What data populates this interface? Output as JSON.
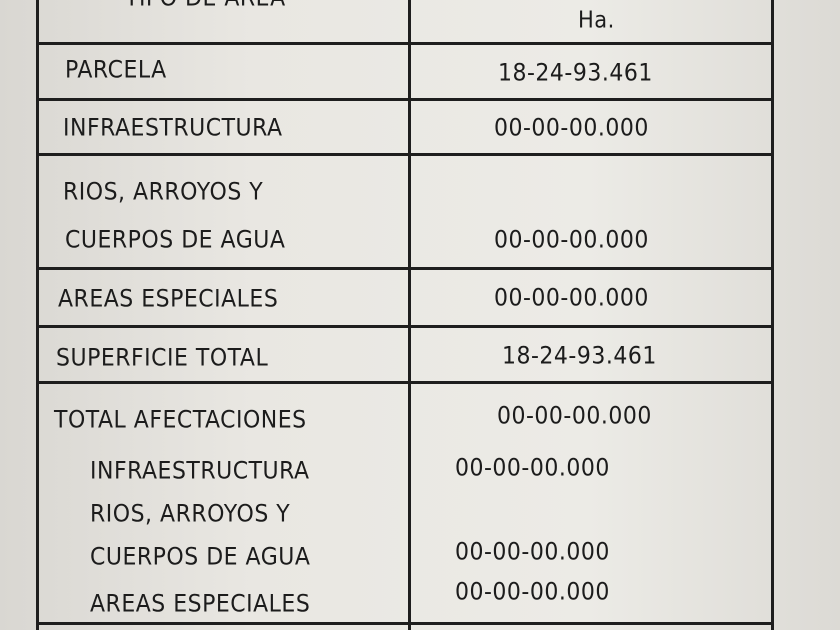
{
  "header": {
    "col1": "TIPO DE AREA",
    "col2": "Ha."
  },
  "rows": [
    {
      "label": "PARCELA",
      "value": "18-24-93.461"
    },
    {
      "label": "INFRAESTRUCTURA",
      "value": "00-00-00.000"
    },
    {
      "label_line1": "RIOS, ARROYOS Y",
      "label_line2": "CUERPOS DE AGUA",
      "value": "00-00-00.000"
    },
    {
      "label": "AREAS ESPECIALES",
      "value": "00-00-00.000"
    },
    {
      "label": "SUPERFICIE TOTAL",
      "value": "18-24-93.461"
    }
  ],
  "afectaciones": {
    "label": "TOTAL AFECTACIONES",
    "value": "00-00-00.000",
    "items": [
      {
        "label": "INFRAESTRUCTURA",
        "value": "00-00-00.000"
      },
      {
        "label_line1": "RIOS, ARROYOS Y",
        "label_line2": "CUERPOS DE AGUA",
        "value": "00-00-00.000"
      },
      {
        "label": "AREAS ESPECIALES",
        "value": "00-00-00.000"
      }
    ]
  }
}
